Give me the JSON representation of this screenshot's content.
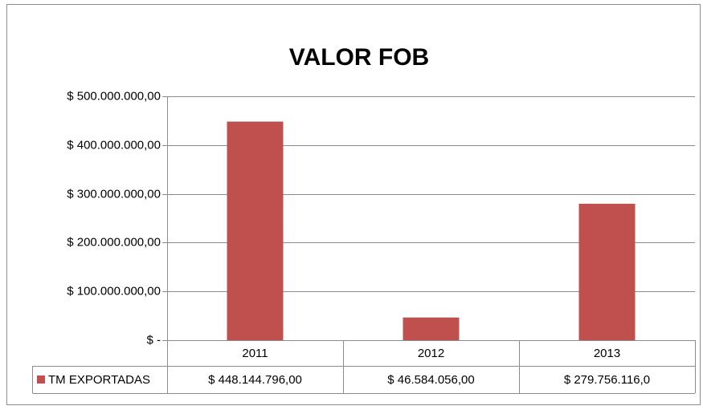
{
  "chart_data": {
    "type": "bar",
    "title": "VALOR FOB",
    "categories": [
      "2011",
      "2012",
      "2013"
    ],
    "series": [
      {
        "name": "TM EXPORTADAS",
        "color": "#c0504d",
        "values": [
          448144796,
          46584056,
          279756116
        ],
        "value_labels": [
          "$ 448.144.796,00",
          "$ 46.584.056,00",
          "$ 279.756.116,0"
        ]
      }
    ],
    "ylim": [
      0,
      500000000
    ],
    "yticks": [
      {
        "value": 0,
        "label": "$ -"
      },
      {
        "value": 100000000,
        "label": "$ 100.000.000,00"
      },
      {
        "value": 200000000,
        "label": "$ 200.000.000,00"
      },
      {
        "value": 300000000,
        "label": "$ 300.000.000,00"
      },
      {
        "value": 400000000,
        "label": "$ 400.000.000,00"
      },
      {
        "value": 500000000,
        "label": "$ 500.000.000,00"
      }
    ],
    "grid": true
  }
}
